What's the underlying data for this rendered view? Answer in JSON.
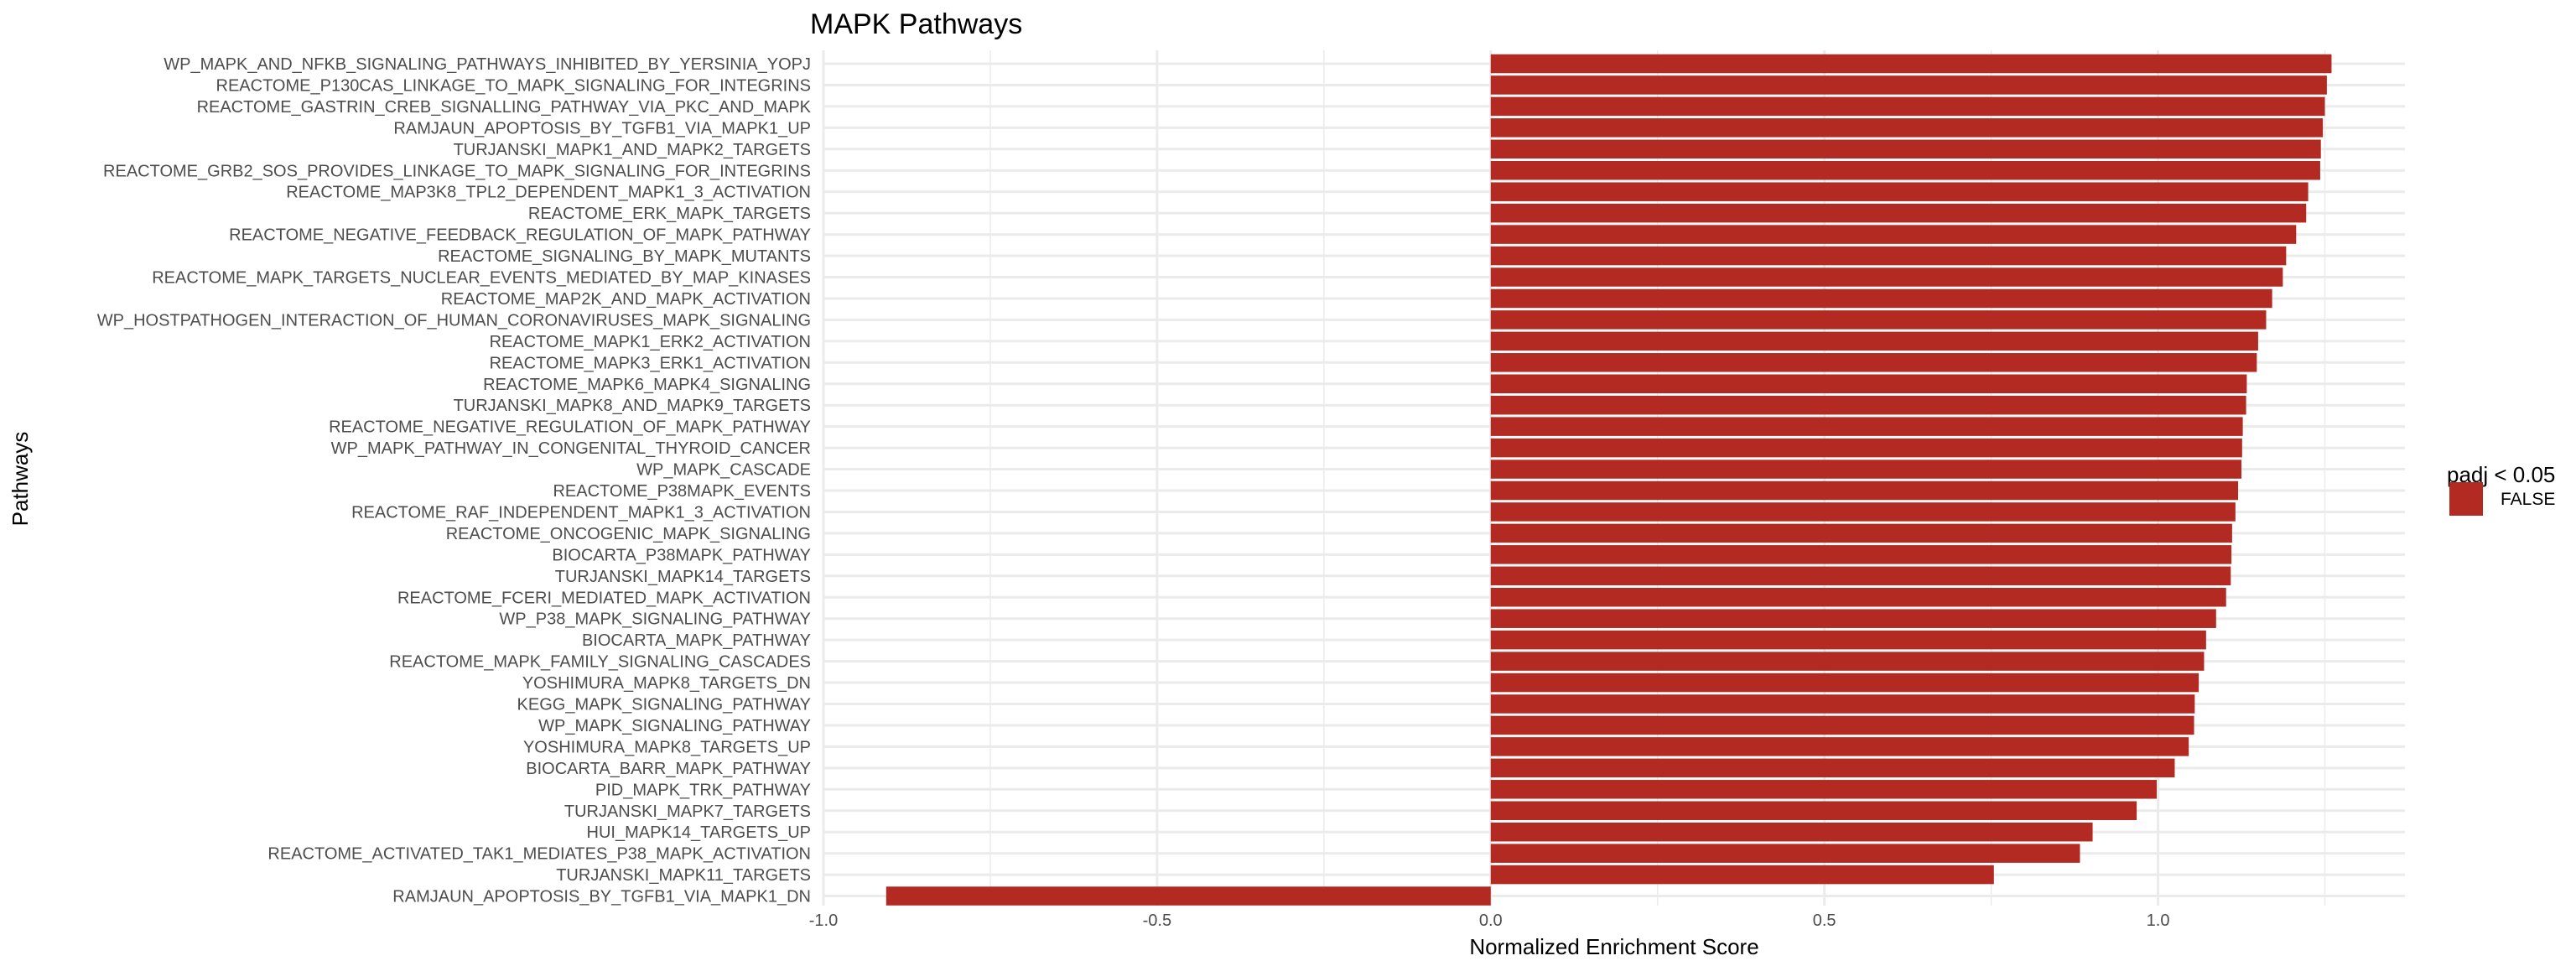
{
  "chart_data": {
    "type": "bar",
    "orientation": "horizontal",
    "title": "MAPK Pathways",
    "xlabel": "Normalized Enrichment Score",
    "ylabel": "Pathways",
    "xlim": [
      -1.0,
      1.37
    ],
    "xticks": [
      -1.0,
      -0.5,
      0.0,
      0.5,
      1.0
    ],
    "xtick_labels": [
      "-1.0",
      "-0.5",
      "0.0",
      "0.5",
      "1.0"
    ],
    "grid": true,
    "bar_color": "#b22a22",
    "legend": {
      "title": "padj < 0.05",
      "position": "right",
      "entries": [
        {
          "label": "FALSE",
          "color": "#b22a22"
        }
      ]
    },
    "categories": [
      "WP_MAPK_AND_NFKB_SIGNALING_PATHWAYS_INHIBITED_BY_YERSINIA_YOPJ",
      "REACTOME_P130CAS_LINKAGE_TO_MAPK_SIGNALING_FOR_INTEGRINS",
      "REACTOME_GASTRIN_CREB_SIGNALLING_PATHWAY_VIA_PKC_AND_MAPK",
      "RAMJAUN_APOPTOSIS_BY_TGFB1_VIA_MAPK1_UP",
      "TURJANSKI_MAPK1_AND_MAPK2_TARGETS",
      "REACTOME_GRB2_SOS_PROVIDES_LINKAGE_TO_MAPK_SIGNALING_FOR_INTEGRINS",
      "REACTOME_MAP3K8_TPL2_DEPENDENT_MAPK1_3_ACTIVATION",
      "REACTOME_ERK_MAPK_TARGETS",
      "REACTOME_NEGATIVE_FEEDBACK_REGULATION_OF_MAPK_PATHWAY",
      "REACTOME_SIGNALING_BY_MAPK_MUTANTS",
      "REACTOME_MAPK_TARGETS_NUCLEAR_EVENTS_MEDIATED_BY_MAP_KINASES",
      "REACTOME_MAP2K_AND_MAPK_ACTIVATION",
      "WP_HOSTPATHOGEN_INTERACTION_OF_HUMAN_CORONAVIRUSES_MAPK_SIGNALING",
      "REACTOME_MAPK1_ERK2_ACTIVATION",
      "REACTOME_MAPK3_ERK1_ACTIVATION",
      "REACTOME_MAPK6_MAPK4_SIGNALING",
      "TURJANSKI_MAPK8_AND_MAPK9_TARGETS",
      "REACTOME_NEGATIVE_REGULATION_OF_MAPK_PATHWAY",
      "WP_MAPK_PATHWAY_IN_CONGENITAL_THYROID_CANCER",
      "WP_MAPK_CASCADE",
      "REACTOME_P38MAPK_EVENTS",
      "REACTOME_RAF_INDEPENDENT_MAPK1_3_ACTIVATION",
      "REACTOME_ONCOGENIC_MAPK_SIGNALING",
      "BIOCARTA_P38MAPK_PATHWAY",
      "TURJANSKI_MAPK14_TARGETS",
      "REACTOME_FCERI_MEDIATED_MAPK_ACTIVATION",
      "WP_P38_MAPK_SIGNALING_PATHWAY",
      "BIOCARTA_MAPK_PATHWAY",
      "REACTOME_MAPK_FAMILY_SIGNALING_CASCADES",
      "YOSHIMURA_MAPK8_TARGETS_DN",
      "KEGG_MAPK_SIGNALING_PATHWAY",
      "WP_MAPK_SIGNALING_PATHWAY",
      "YOSHIMURA_MAPK8_TARGETS_UP",
      "BIOCARTA_BARR_MAPK_PATHWAY",
      "PID_MAPK_TRK_PATHWAY",
      "TURJANSKI_MAPK7_TARGETS",
      "HUI_MAPK14_TARGETS_UP",
      "REACTOME_ACTIVATED_TAK1_MEDIATES_P38_MAPK_ACTIVATION",
      "TURJANSKI_MAPK11_TARGETS",
      "RAMJAUN_APOPTOSIS_BY_TGFB1_VIA_MAPK1_DN"
    ],
    "values": [
      1.26,
      1.253,
      1.25,
      1.247,
      1.244,
      1.243,
      1.225,
      1.222,
      1.207,
      1.192,
      1.187,
      1.171,
      1.162,
      1.15,
      1.148,
      1.133,
      1.132,
      1.127,
      1.126,
      1.125,
      1.12,
      1.116,
      1.111,
      1.11,
      1.109,
      1.102,
      1.087,
      1.072,
      1.069,
      1.061,
      1.055,
      1.054,
      1.046,
      1.025,
      0.998,
      0.968,
      0.902,
      0.883,
      0.754,
      -0.906
    ]
  }
}
